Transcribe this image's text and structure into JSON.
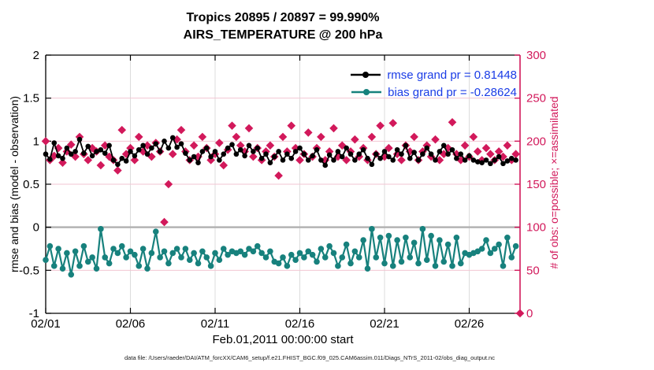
{
  "title": {
    "line1": "Tropics 20895 / 20897 = 99.990%",
    "line2": "AIRS_TEMPERATURE @ 200 hPa"
  },
  "legend": {
    "text_color": "#1a3ce6",
    "items": [
      {
        "label": "rmse grand pr = 0.81448",
        "color": "#000000"
      },
      {
        "label": "bias grand pr = -0.28624",
        "color": "#17817d"
      }
    ]
  },
  "axes": {
    "left": {
      "label": "rmse and bias (model - observation)",
      "tick_labels": [
        "-1",
        "-0.5",
        "0",
        "0.5",
        "1",
        "1.5",
        "2"
      ],
      "tick_values": [
        -1,
        -0.5,
        0,
        0.5,
        1,
        1.5,
        2
      ],
      "range": [
        -1,
        2
      ],
      "color": "#000000"
    },
    "right": {
      "label": "# of obs: o=possible; ×=assimilated",
      "tick_labels": [
        "0",
        "50",
        "100",
        "150",
        "200",
        "250",
        "300"
      ],
      "tick_values": [
        0,
        50,
        100,
        150,
        200,
        250,
        300
      ],
      "range": [
        0,
        300
      ],
      "color": "#d2195b"
    },
    "bottom": {
      "label": "Feb.01,2011 00:00:00 start",
      "tick_labels": [
        "02/01",
        "02/06",
        "02/11",
        "02/16",
        "02/21",
        "02/26"
      ],
      "tick_days": [
        0,
        5,
        10,
        15,
        20,
        25
      ],
      "range_days": [
        0,
        28
      ]
    }
  },
  "footer": {
    "data_file": "data file: /Users/raeder/DAI/ATM_forcXX/CAM6_setup/f.e21.FHIST_BGC.f09_025.CAM6assim.011/Diags_NTrS_2011-02/obs_diag_output.nc"
  },
  "colors": {
    "rmse": "#000000",
    "bias": "#17817d",
    "obs": "#d2195b",
    "zero_line": "#b3b3b3",
    "grid_h": "#f2c6d2",
    "grid_v": "#dcdcdc",
    "background": "#ffffff"
  },
  "chart_data": {
    "type": "line",
    "title": "Tropics 20895 / 20897 = 99.990% | AIRS_TEMPERATURE @ 200 hPa",
    "x_start": "2011-02-01 00:00:00",
    "x_step_hours": 6,
    "xlabel": "Feb.01,2011 00:00:00 start",
    "ylabel_left": "rmse and bias (model - observation)",
    "ylabel_right": "# of obs: o=possible; ×=assimilated",
    "ylim_left": [
      -1,
      2
    ],
    "ylim_right": [
      0,
      300
    ],
    "grid": true,
    "legend_position": "top-right-inside",
    "stats": {
      "rmse_grand": 0.81448,
      "bias_grand": -0.28624,
      "obs_assimilated": 20895,
      "obs_possible": 20897,
      "percent": "99.990%"
    },
    "series": [
      {
        "name": "rmse",
        "axis": "left",
        "marker": "circle",
        "color": "#000000",
        "values": [
          0.85,
          0.79,
          0.98,
          0.83,
          0.8,
          0.92,
          0.85,
          0.88,
          1.02,
          0.86,
          0.94,
          0.83,
          0.88,
          0.9,
          0.86,
          0.95,
          0.78,
          0.73,
          0.8,
          0.77,
          0.88,
          0.83,
          0.9,
          0.95,
          0.85,
          0.92,
          0.97,
          0.88,
          1.0,
          0.92,
          1.04,
          0.93,
          0.97,
          0.86,
          0.78,
          0.82,
          0.75,
          0.88,
          0.92,
          0.82,
          0.88,
          0.78,
          0.85,
          0.92,
          0.96,
          0.85,
          0.9,
          0.83,
          0.95,
          0.88,
          0.92,
          0.8,
          0.85,
          0.75,
          0.82,
          0.88,
          0.78,
          0.85,
          0.8,
          0.88,
          0.92,
          0.85,
          0.78,
          0.83,
          0.9,
          0.78,
          0.72,
          0.84,
          0.78,
          0.88,
          0.82,
          0.92,
          0.85,
          0.78,
          0.85,
          0.9,
          0.8,
          0.73,
          0.85,
          0.8,
          0.88,
          0.82,
          0.78,
          0.9,
          0.85,
          0.95,
          0.8,
          0.87,
          0.78,
          0.85,
          0.92,
          0.85,
          0.78,
          0.88,
          0.95,
          0.85,
          0.9,
          0.8,
          0.85,
          0.78,
          0.83,
          0.78,
          0.76,
          0.75,
          0.78,
          0.74,
          0.78,
          0.82,
          0.74,
          0.77,
          0.8,
          0.78
        ]
      },
      {
        "name": "bias",
        "axis": "left",
        "marker": "circle",
        "color": "#17817d",
        "values": [
          -0.38,
          -0.22,
          -0.45,
          -0.25,
          -0.48,
          -0.3,
          -0.55,
          -0.28,
          -0.45,
          -0.22,
          -0.4,
          -0.35,
          -0.48,
          -0.02,
          -0.35,
          -0.42,
          -0.25,
          -0.3,
          -0.22,
          -0.35,
          -0.28,
          -0.32,
          -0.45,
          -0.25,
          -0.48,
          -0.3,
          -0.05,
          -0.35,
          -0.28,
          -0.42,
          -0.3,
          -0.25,
          -0.35,
          -0.25,
          -0.38,
          -0.3,
          -0.42,
          -0.28,
          -0.35,
          -0.45,
          -0.3,
          -0.38,
          -0.25,
          -0.32,
          -0.28,
          -0.3,
          -0.28,
          -0.32,
          -0.25,
          -0.28,
          -0.22,
          -0.3,
          -0.35,
          -0.28,
          -0.4,
          -0.42,
          -0.35,
          -0.45,
          -0.32,
          -0.38,
          -0.3,
          -0.35,
          -0.28,
          -0.32,
          -0.4,
          -0.25,
          -0.35,
          -0.22,
          -0.3,
          -0.45,
          -0.35,
          -0.2,
          -0.42,
          -0.28,
          -0.35,
          -0.15,
          -0.48,
          -0.02,
          -0.35,
          -0.12,
          -0.42,
          -0.1,
          -0.45,
          -0.15,
          -0.4,
          -0.12,
          -0.35,
          -0.18,
          -0.42,
          -0.02,
          -0.38,
          -0.1,
          -0.45,
          -0.15,
          -0.4,
          -0.2,
          -0.45,
          -0.12,
          -0.42,
          -0.3,
          -0.32,
          -0.3,
          -0.28,
          -0.25,
          -0.15,
          -0.3,
          -0.25,
          -0.2,
          -0.45,
          -0.12,
          -0.35,
          -0.22
        ]
      },
      {
        "name": "num_obs",
        "axis": "right",
        "marker": "diamond",
        "color": "#d2195b",
        "values": [
          200,
          178,
          183,
          192,
          175,
          188,
          196,
          182,
          205,
          185,
          178,
          192,
          188,
          172,
          195,
          182,
          178,
          166,
          213,
          185,
          192,
          178,
          205,
          188,
          195,
          182,
          198,
          188,
          106,
          150,
          185,
          202,
          213,
          188,
          178,
          195,
          182,
          205,
          192,
          178,
          185,
          198,
          172,
          190,
          218,
          205,
          195,
          188,
          215,
          182,
          192,
          178,
          188,
          195,
          182,
          160,
          205,
          188,
          218,
          192,
          178,
          185,
          210,
          182,
          192,
          205,
          178,
          188,
          215,
          182,
          195,
          178,
          188,
          202,
          182,
          192,
          178,
          205,
          185,
          218,
          182,
          192,
          221,
          185,
          178,
          195,
          188,
          205,
          178,
          188,
          195,
          182,
          202,
          178,
          185,
          192,
          222,
          185,
          178,
          195,
          182,
          205,
          188,
          178,
          192,
          185,
          178,
          188,
          182,
          195,
          178,
          185,
          0
        ]
      }
    ]
  }
}
